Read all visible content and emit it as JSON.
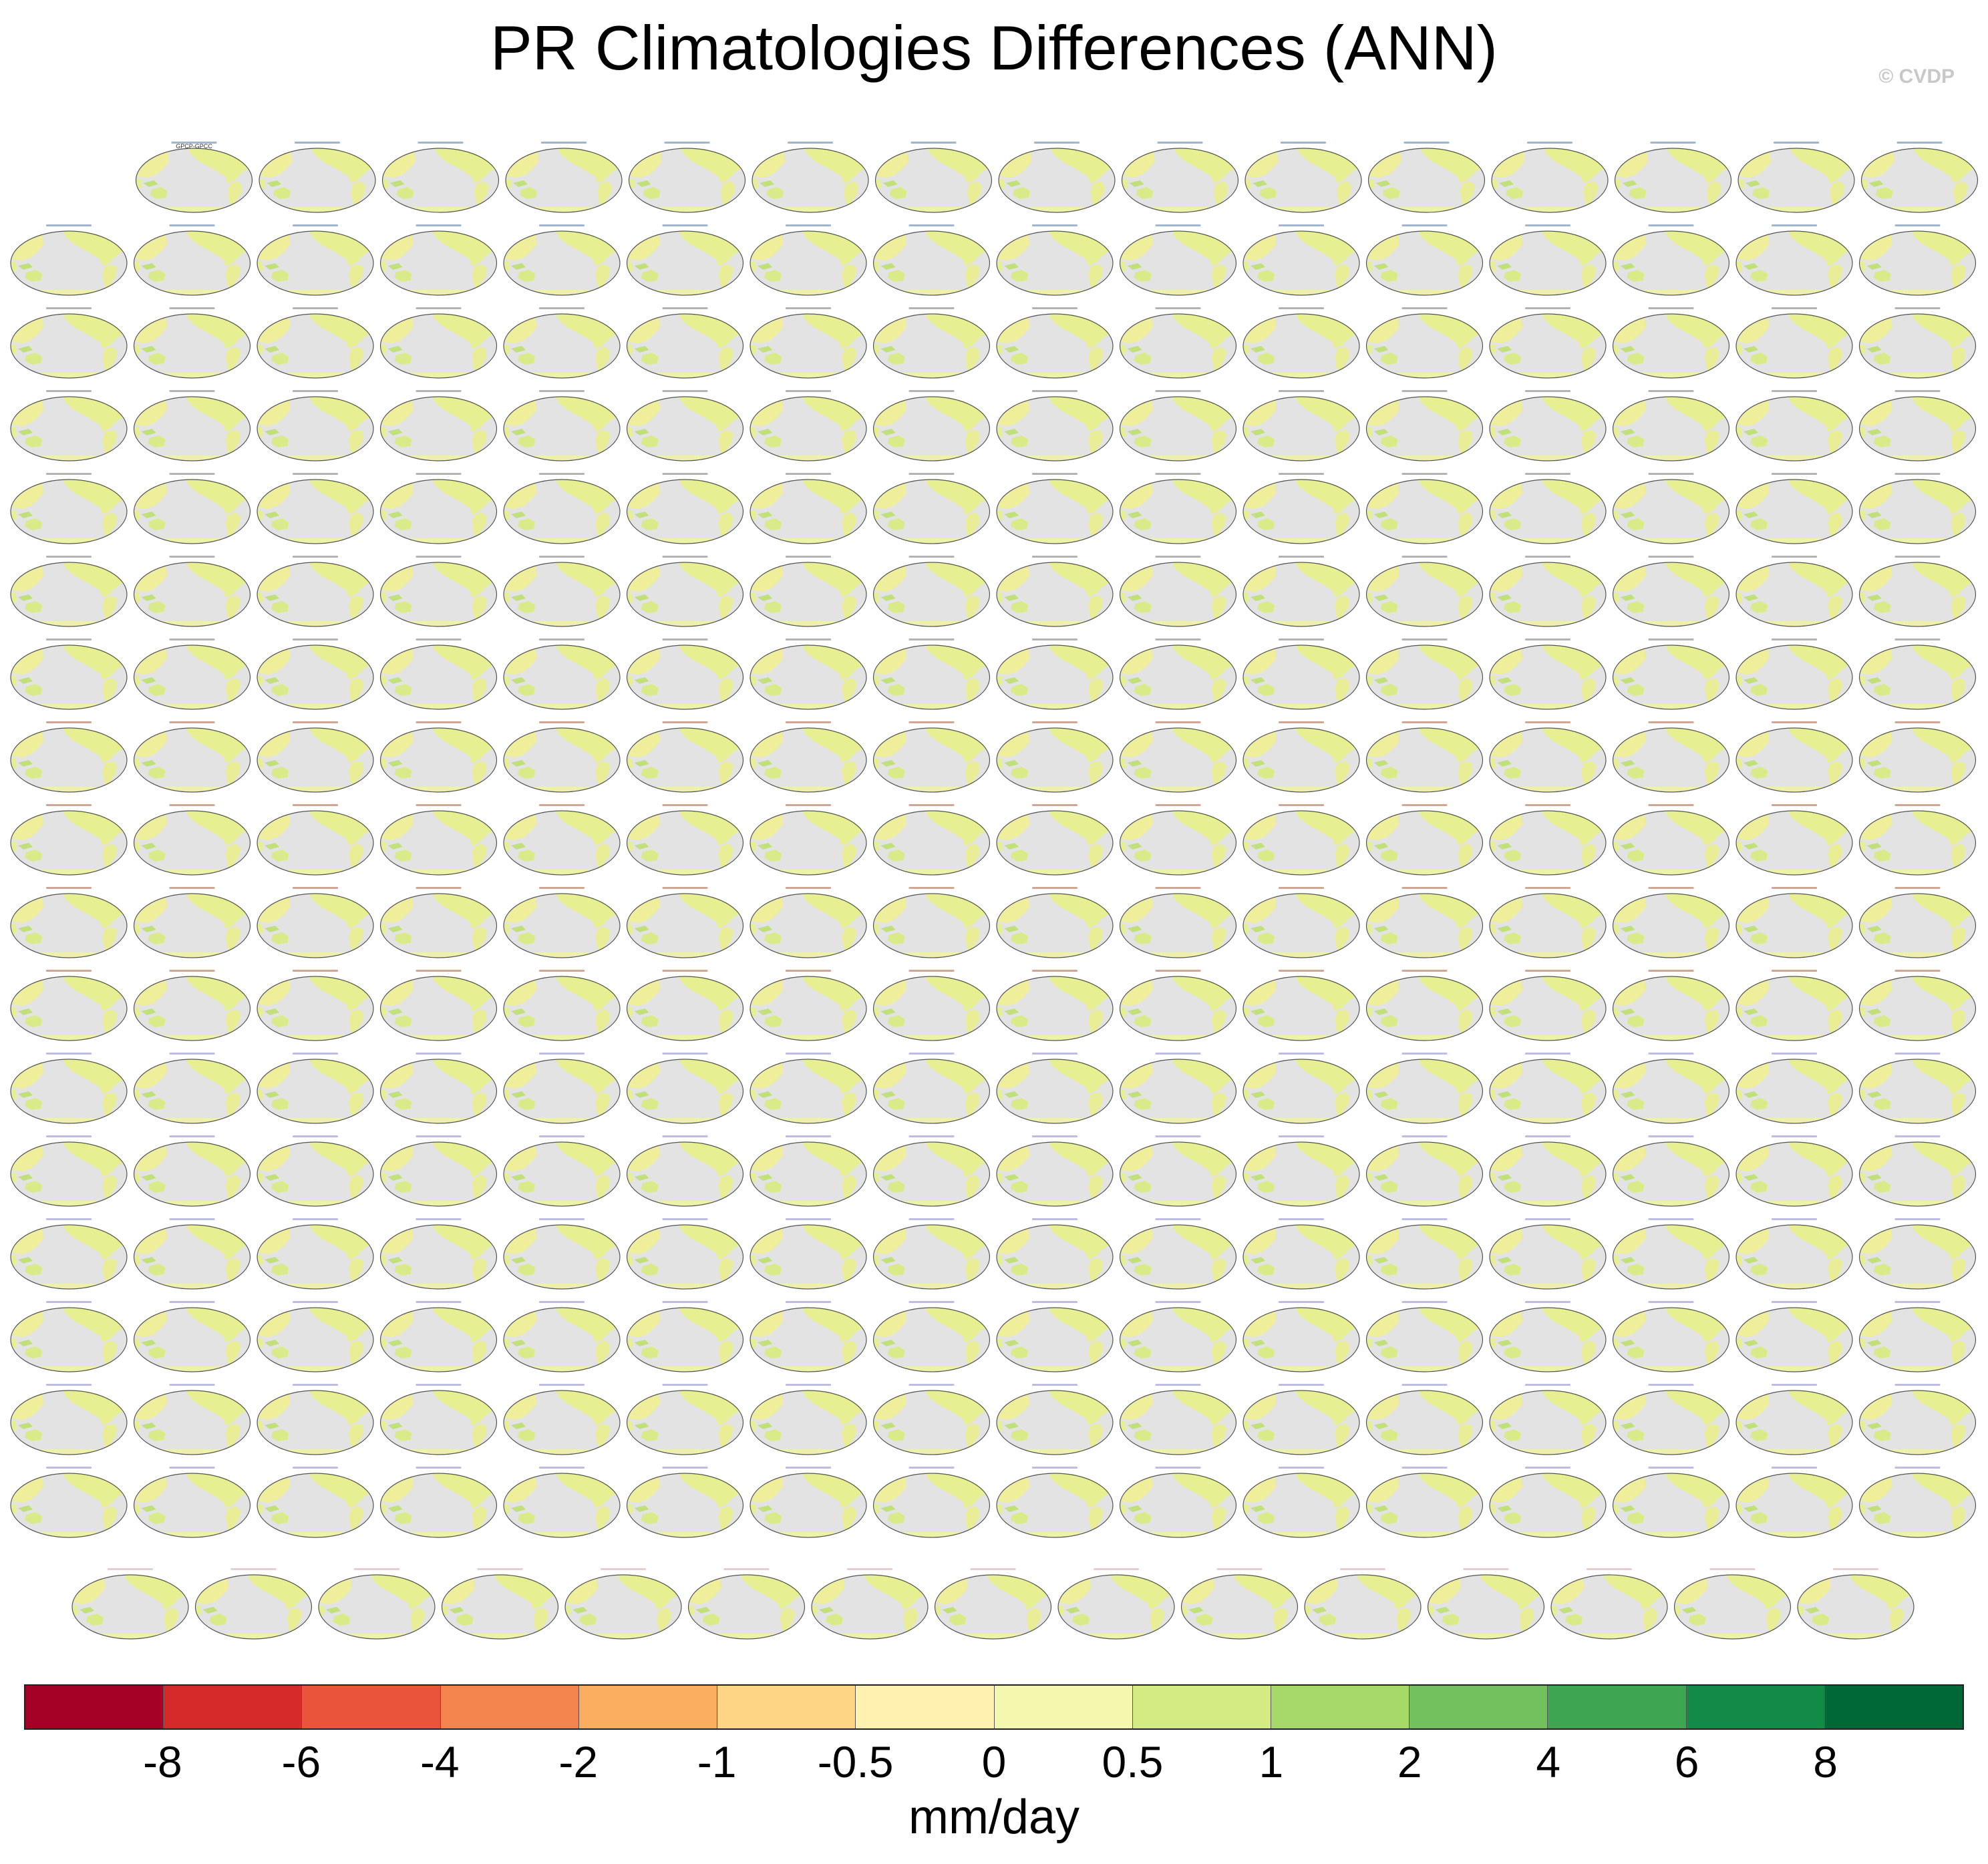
{
  "title": "PR Climatologies Differences (ANN)",
  "credit": "© CVDP",
  "chart_data": {
    "type": "map-panel-grid",
    "title": "PR Climatologies Differences (ANN)",
    "panel_rows": 18,
    "panel_columns": 16,
    "first_panel_label": "GPCP-GPCC",
    "colorbar": {
      "units": "mm/day",
      "levels": [
        "-8",
        "-6",
        "-4",
        "-2",
        "-1",
        "-0.5",
        "0",
        "0.5",
        "1",
        "2",
        "4",
        "6",
        "8"
      ],
      "colors": [
        "#a50026",
        "#d42a2a",
        "#e9543a",
        "#f4844d",
        "#fbae60",
        "#fdd585",
        "#fff2b0",
        "#f3f8ae",
        "#d4eb83",
        "#a6d96a",
        "#72c15e",
        "#3ea653",
        "#138a46",
        "#006837"
      ]
    }
  }
}
